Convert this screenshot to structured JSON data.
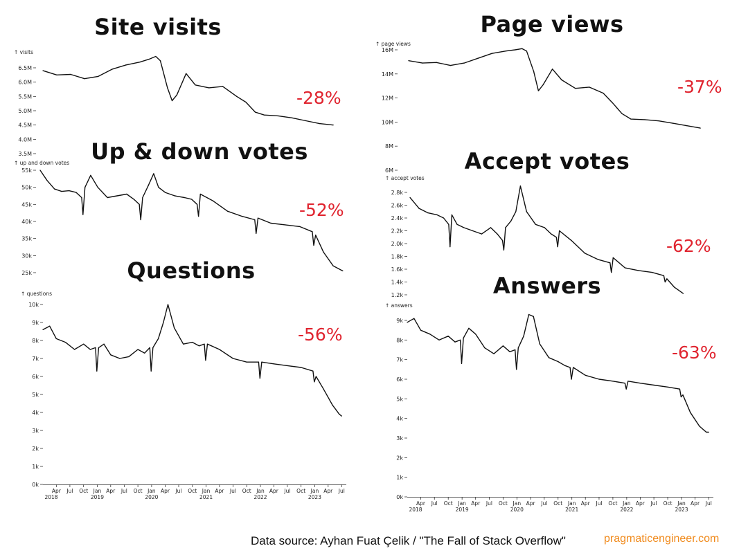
{
  "footer": {
    "source": "Data source: Ayhan Fuat Çelik / \"The Fall of Stack Overflow\"",
    "site": "pragmaticengineer.com"
  },
  "colors": {
    "line": "#111111",
    "percent": "#e0242f",
    "site": "#f08a1c"
  },
  "chart_data": [
    {
      "id": "visits",
      "type": "line",
      "title": "Site visits",
      "ylabel": "↑ visits",
      "change_label": "-28%",
      "yticks": [
        {
          "v": 6500000,
          "l": "6.5M"
        },
        {
          "v": 6000000,
          "l": "6.0M"
        },
        {
          "v": 5500000,
          "l": "5.5M"
        },
        {
          "v": 5000000,
          "l": "5.0M"
        },
        {
          "v": 4500000,
          "l": "4.5M"
        },
        {
          "v": 4000000,
          "l": "4.0M"
        },
        {
          "v": 3500000,
          "l": "3.5M"
        }
      ],
      "ylim": [
        3500000,
        7000000
      ],
      "xlim": [
        "2018-04-01",
        "2023-08-01"
      ],
      "x": [
        "2018-04-01",
        "2018-07-01",
        "2018-10-01",
        "2019-01-01",
        "2019-04-01",
        "2019-07-01",
        "2019-10-01",
        "2020-01-01",
        "2020-03-01",
        "2020-04-15",
        "2020-05-15",
        "2020-07-01",
        "2020-08-01",
        "2020-09-01",
        "2020-11-01",
        "2021-01-01",
        "2021-04-01",
        "2021-07-01",
        "2021-10-01",
        "2021-12-01",
        "2022-02-01",
        "2022-04-01",
        "2022-07-01",
        "2022-10-01",
        "2023-01-01",
        "2023-04-01",
        "2023-07-01"
      ],
      "y": [
        6400000,
        6250000,
        6270000,
        6120000,
        6200000,
        6450000,
        6600000,
        6700000,
        6800000,
        6900000,
        6750000,
        5800000,
        5350000,
        5550000,
        6300000,
        5900000,
        5800000,
        5850000,
        5500000,
        5300000,
        4950000,
        4850000,
        4820000,
        4750000,
        4650000,
        4550000,
        4500000
      ],
      "series": [
        {
          "values": "y"
        }
      ]
    },
    {
      "id": "pageviews",
      "type": "line",
      "title": "Page views",
      "ylabel": "↑ page views",
      "change_label": "-37%",
      "yticks": [
        {
          "v": 16000000,
          "l": "16M"
        },
        {
          "v": 14000000,
          "l": "14M"
        },
        {
          "v": 12000000,
          "l": "12M"
        },
        {
          "v": 10000000,
          "l": "10M"
        },
        {
          "v": 8000000,
          "l": "8M"
        },
        {
          "v": 6000000,
          "l": "6M"
        }
      ],
      "ylim": [
        6000000,
        16500000
      ],
      "xlim": [
        "2018-04-01",
        "2023-08-01"
      ],
      "x": [
        "2018-04-01",
        "2018-07-01",
        "2018-10-01",
        "2019-01-01",
        "2019-04-01",
        "2019-07-01",
        "2019-10-01",
        "2020-01-01",
        "2020-03-01",
        "2020-04-15",
        "2020-05-15",
        "2020-07-01",
        "2020-08-01",
        "2020-09-01",
        "2020-11-01",
        "2021-01-01",
        "2021-04-01",
        "2021-07-01",
        "2021-10-01",
        "2021-12-01",
        "2022-02-01",
        "2022-04-01",
        "2022-07-01",
        "2022-10-01",
        "2023-01-01",
        "2023-04-01",
        "2023-07-01"
      ],
      "y": [
        15100000,
        14900000,
        14950000,
        14700000,
        14900000,
        15300000,
        15700000,
        15900000,
        16000000,
        16100000,
        15900000,
        14200000,
        12600000,
        13100000,
        14400000,
        13500000,
        12800000,
        12900000,
        12400000,
        11600000,
        10700000,
        10250000,
        10200000,
        10100000,
        9900000,
        9700000,
        9500000
      ],
      "series": [
        {
          "values": "y"
        }
      ]
    },
    {
      "id": "votes",
      "type": "line",
      "title": "Up & down votes",
      "ylabel": "↑ up and down votes",
      "change_label": "-52%",
      "yticks": [
        {
          "v": 55000,
          "l": "55k"
        },
        {
          "v": 50000,
          "l": "50k"
        },
        {
          "v": 45000,
          "l": "45k"
        },
        {
          "v": 40000,
          "l": "40k"
        },
        {
          "v": 35000,
          "l": "35k"
        },
        {
          "v": 30000,
          "l": "30k"
        },
        {
          "v": 25000,
          "l": "25k"
        }
      ],
      "ylim": [
        24000,
        56000
      ],
      "xlim": [
        "2018-04-01",
        "2023-08-01"
      ],
      "x": [
        "2018-04-01",
        "2018-05-15",
        "2018-07-01",
        "2018-08-15",
        "2018-10-01",
        "2018-11-15",
        "2018-12-20",
        "2018-12-28",
        "2019-01-10",
        "2019-02-15",
        "2019-04-01",
        "2019-06-01",
        "2019-08-01",
        "2019-10-01",
        "2019-11-15",
        "2019-12-20",
        "2019-12-29",
        "2020-01-10",
        "2020-02-15",
        "2020-03-20",
        "2020-04-20",
        "2020-06-01",
        "2020-08-01",
        "2020-10-01",
        "2020-11-15",
        "2020-12-20",
        "2020-12-29",
        "2021-01-10",
        "2021-04-01",
        "2021-07-01",
        "2021-10-01",
        "2021-12-20",
        "2021-12-29",
        "2022-01-10",
        "2022-04-01",
        "2022-07-01",
        "2022-10-01",
        "2022-12-20",
        "2022-12-29",
        "2023-01-10",
        "2023-03-01",
        "2023-05-01",
        "2023-07-01"
      ],
      "y": [
        55000,
        52000,
        49500,
        48800,
        49000,
        48500,
        47000,
        42000,
        50000,
        53500,
        50000,
        47000,
        47500,
        48000,
        46500,
        45000,
        40500,
        47000,
        50500,
        54000,
        50000,
        48500,
        47500,
        47000,
        46500,
        45000,
        41500,
        48000,
        46000,
        43000,
        41500,
        40500,
        36500,
        41000,
        39500,
        39000,
        38500,
        37000,
        33000,
        36000,
        31000,
        27000,
        25500
      ],
      "series": [
        {
          "values": "y"
        }
      ]
    },
    {
      "id": "accept",
      "type": "line",
      "title": "Accept votes",
      "ylabel": "↑ accept votes",
      "change_label": "-62%",
      "yticks": [
        {
          "v": 2800,
          "l": "2.8k"
        },
        {
          "v": 2600,
          "l": "2.6k"
        },
        {
          "v": 2400,
          "l": "2.4k"
        },
        {
          "v": 2200,
          "l": "2.2k"
        },
        {
          "v": 2000,
          "l": "2.0k"
        },
        {
          "v": 1800,
          "l": "1.8k"
        },
        {
          "v": 1600,
          "l": "1.6k"
        },
        {
          "v": 1400,
          "l": "1.4k"
        },
        {
          "v": 1200,
          "l": "1.2k"
        }
      ],
      "ylim": [
        1200,
        2950
      ],
      "xlim": [
        "2018-04-01",
        "2023-08-01"
      ],
      "x": [
        "2018-04-01",
        "2018-06-01",
        "2018-08-01",
        "2018-10-01",
        "2018-11-15",
        "2018-12-20",
        "2018-12-29",
        "2019-01-10",
        "2019-02-15",
        "2019-04-01",
        "2019-06-01",
        "2019-08-01",
        "2019-10-01",
        "2019-11-15",
        "2019-12-20",
        "2019-12-29",
        "2020-01-10",
        "2020-02-15",
        "2020-03-20",
        "2020-04-20",
        "2020-06-01",
        "2020-08-01",
        "2020-10-01",
        "2020-11-15",
        "2020-12-20",
        "2020-12-29",
        "2021-01-10",
        "2021-04-01",
        "2021-07-01",
        "2021-10-01",
        "2021-12-20",
        "2021-12-29",
        "2022-01-10",
        "2022-04-01",
        "2022-07-01",
        "2022-10-01",
        "2022-12-20",
        "2022-12-29",
        "2023-01-10",
        "2023-03-01",
        "2023-05-01"
      ],
      "y": [
        2720,
        2550,
        2480,
        2450,
        2400,
        2300,
        1950,
        2450,
        2300,
        2250,
        2200,
        2150,
        2250,
        2150,
        2050,
        1900,
        2250,
        2350,
        2500,
        2900,
        2500,
        2300,
        2250,
        2150,
        2100,
        1950,
        2200,
        2050,
        1850,
        1750,
        1700,
        1550,
        1780,
        1620,
        1580,
        1550,
        1500,
        1400,
        1450,
        1320,
        1220
      ],
      "series": [
        {
          "values": "y"
        }
      ]
    },
    {
      "id": "questions",
      "type": "line",
      "title": "Questions",
      "ylabel": "↑ questions",
      "change_label": "-56%",
      "yticks": [
        {
          "v": 10000,
          "l": "10k"
        },
        {
          "v": 9000,
          "l": "9k"
        },
        {
          "v": 8000,
          "l": "8k"
        },
        {
          "v": 7000,
          "l": "7k"
        },
        {
          "v": 6000,
          "l": "6k"
        },
        {
          "v": 5000,
          "l": "5k"
        },
        {
          "v": 4000,
          "l": "4k"
        },
        {
          "v": 3000,
          "l": "3k"
        },
        {
          "v": 2000,
          "l": "2k"
        },
        {
          "v": 1000,
          "l": "1k"
        },
        {
          "v": 0,
          "l": "0k"
        }
      ],
      "ylim": [
        0,
        10200
      ],
      "xlim": [
        "2018-01-01",
        "2023-08-01"
      ],
      "xticks": [
        {
          "d": "2018-04-01",
          "l": "Apr"
        },
        {
          "d": "2018-07-01",
          "l": "Jul"
        },
        {
          "d": "2018-10-01",
          "l": "Oct"
        },
        {
          "d": "2019-01-01",
          "l": "Jan"
        },
        {
          "d": "2019-04-01",
          "l": "Apr"
        },
        {
          "d": "2019-07-01",
          "l": "Jul"
        },
        {
          "d": "2019-10-01",
          "l": "Oct"
        },
        {
          "d": "2020-01-01",
          "l": "Jan"
        },
        {
          "d": "2020-04-01",
          "l": "Apr"
        },
        {
          "d": "2020-07-01",
          "l": "Jul"
        },
        {
          "d": "2020-10-01",
          "l": "Oct"
        },
        {
          "d": "2021-01-01",
          "l": "Jan"
        },
        {
          "d": "2021-04-01",
          "l": "Apr"
        },
        {
          "d": "2021-07-01",
          "l": "Jul"
        },
        {
          "d": "2021-10-01",
          "l": "Oct"
        },
        {
          "d": "2022-01-01",
          "l": "Jan"
        },
        {
          "d": "2022-04-01",
          "l": "Apr"
        },
        {
          "d": "2022-07-01",
          "l": "Jul"
        },
        {
          "d": "2022-10-01",
          "l": "Oct"
        },
        {
          "d": "2023-01-01",
          "l": "Jan"
        },
        {
          "d": "2023-04-01",
          "l": "Apr"
        },
        {
          "d": "2023-07-01",
          "l": "Jul"
        }
      ],
      "xyears": [
        {
          "d": "2018-01-01",
          "l": "2018"
        },
        {
          "d": "2019-01-01",
          "l": "2019"
        },
        {
          "d": "2020-01-01",
          "l": "2020"
        },
        {
          "d": "2021-01-01",
          "l": "2021"
        },
        {
          "d": "2022-01-01",
          "l": "2022"
        },
        {
          "d": "2023-01-01",
          "l": "2023"
        }
      ],
      "x": [
        "2018-01-01",
        "2018-02-15",
        "2018-04-01",
        "2018-06-01",
        "2018-08-01",
        "2018-10-01",
        "2018-11-15",
        "2018-12-20",
        "2018-12-29",
        "2019-01-10",
        "2019-02-15",
        "2019-04-01",
        "2019-06-01",
        "2019-08-01",
        "2019-10-01",
        "2019-11-15",
        "2019-12-20",
        "2019-12-29",
        "2020-01-10",
        "2020-02-15",
        "2020-03-20",
        "2020-04-20",
        "2020-06-01",
        "2020-08-01",
        "2020-10-01",
        "2020-11-15",
        "2020-12-20",
        "2020-12-29",
        "2021-01-10",
        "2021-04-01",
        "2021-07-01",
        "2021-10-01",
        "2021-12-20",
        "2021-12-29",
        "2022-01-10",
        "2022-04-01",
        "2022-07-01",
        "2022-10-01",
        "2022-12-20",
        "2022-12-29",
        "2023-01-10",
        "2023-03-01",
        "2023-05-01",
        "2023-06-15",
        "2023-07-01"
      ],
      "y": [
        8600,
        8800,
        8100,
        7900,
        7500,
        7800,
        7500,
        7600,
        6300,
        7600,
        7800,
        7200,
        7000,
        7100,
        7500,
        7300,
        7600,
        6300,
        7600,
        8100,
        9000,
        10000,
        8700,
        7800,
        7900,
        7700,
        7800,
        6900,
        7800,
        7500,
        7000,
        6800,
        6800,
        5900,
        6800,
        6700,
        6600,
        6500,
        6300,
        5700,
        6000,
        5300,
        4400,
        3900,
        3800
      ],
      "series": [
        {
          "values": "y"
        }
      ]
    },
    {
      "id": "answers",
      "type": "line",
      "title": "Answers",
      "ylabel": "↑ answers",
      "change_label": "-63%",
      "yticks": [
        {
          "v": 9000,
          "l": "9k"
        },
        {
          "v": 8000,
          "l": "8k"
        },
        {
          "v": 7000,
          "l": "7k"
        },
        {
          "v": 6000,
          "l": "6k"
        },
        {
          "v": 5000,
          "l": "5k"
        },
        {
          "v": 4000,
          "l": "4k"
        },
        {
          "v": 3000,
          "l": "3k"
        },
        {
          "v": 2000,
          "l": "2k"
        },
        {
          "v": 1000,
          "l": "1k"
        },
        {
          "v": 0,
          "l": "0k"
        }
      ],
      "ylim": [
        0,
        9600
      ],
      "xlim": [
        "2018-01-01",
        "2023-08-01"
      ],
      "xticks": [
        {
          "d": "2018-04-01",
          "l": "Apr"
        },
        {
          "d": "2018-07-01",
          "l": "Jul"
        },
        {
          "d": "2018-10-01",
          "l": "Oct"
        },
        {
          "d": "2019-01-01",
          "l": "Jan"
        },
        {
          "d": "2019-04-01",
          "l": "Apr"
        },
        {
          "d": "2019-07-01",
          "l": "Jul"
        },
        {
          "d": "2019-10-01",
          "l": "Oct"
        },
        {
          "d": "2020-01-01",
          "l": "Jan"
        },
        {
          "d": "2020-04-01",
          "l": "Apr"
        },
        {
          "d": "2020-07-01",
          "l": "Jul"
        },
        {
          "d": "2020-10-01",
          "l": "Oct"
        },
        {
          "d": "2021-01-01",
          "l": "Jan"
        },
        {
          "d": "2021-04-01",
          "l": "Apr"
        },
        {
          "d": "2021-07-01",
          "l": "Jul"
        },
        {
          "d": "2021-10-01",
          "l": "Oct"
        },
        {
          "d": "2022-01-01",
          "l": "Jan"
        },
        {
          "d": "2022-04-01",
          "l": "Apr"
        },
        {
          "d": "2022-07-01",
          "l": "Jul"
        },
        {
          "d": "2022-10-01",
          "l": "Oct"
        },
        {
          "d": "2023-01-01",
          "l": "Jan"
        },
        {
          "d": "2023-04-01",
          "l": "Apr"
        },
        {
          "d": "2023-07-01",
          "l": "Jul"
        }
      ],
      "xyears": [
        {
          "d": "2018-01-01",
          "l": "2018"
        },
        {
          "d": "2019-01-01",
          "l": "2019"
        },
        {
          "d": "2020-01-01",
          "l": "2020"
        },
        {
          "d": "2021-01-01",
          "l": "2021"
        },
        {
          "d": "2022-01-01",
          "l": "2022"
        },
        {
          "d": "2023-01-01",
          "l": "2023"
        }
      ],
      "x": [
        "2018-01-01",
        "2018-02-15",
        "2018-04-01",
        "2018-06-01",
        "2018-08-01",
        "2018-10-01",
        "2018-11-15",
        "2018-12-20",
        "2018-12-29",
        "2019-01-10",
        "2019-02-15",
        "2019-04-01",
        "2019-06-01",
        "2019-08-01",
        "2019-10-01",
        "2019-11-15",
        "2019-12-20",
        "2019-12-29",
        "2020-01-10",
        "2020-02-15",
        "2020-03-20",
        "2020-04-20",
        "2020-06-01",
        "2020-08-01",
        "2020-10-01",
        "2020-11-15",
        "2020-12-20",
        "2020-12-29",
        "2021-01-10",
        "2021-04-01",
        "2021-07-01",
        "2021-10-01",
        "2021-12-20",
        "2021-12-29",
        "2022-01-10",
        "2022-04-01",
        "2022-07-01",
        "2022-10-01",
        "2022-12-20",
        "2022-12-29",
        "2023-01-10",
        "2023-03-01",
        "2023-05-01",
        "2023-06-15",
        "2023-07-01"
      ],
      "y": [
        8900,
        9100,
        8500,
        8300,
        8000,
        8200,
        7900,
        8000,
        6800,
        8100,
        8600,
        8300,
        7600,
        7300,
        7700,
        7400,
        7500,
        6500,
        7600,
        8200,
        9300,
        9200,
        7800,
        7100,
        6900,
        6700,
        6600,
        6000,
        6600,
        6200,
        6000,
        5900,
        5800,
        5500,
        5900,
        5800,
        5700,
        5600,
        5500,
        5100,
        5200,
        4300,
        3600,
        3300,
        3300
      ],
      "series": [
        {
          "values": "y"
        }
      ]
    }
  ]
}
